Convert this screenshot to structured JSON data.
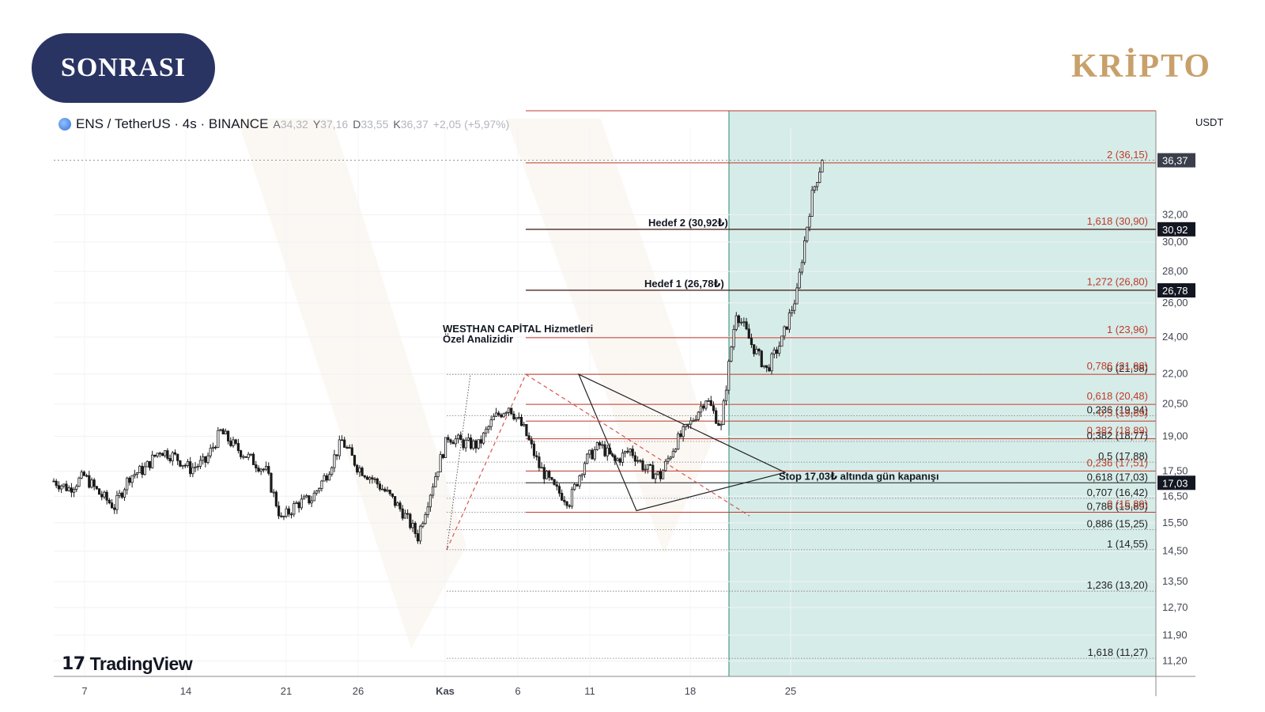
{
  "badge": {
    "label": "SONRASI"
  },
  "brand": {
    "label": "KRİPTO"
  },
  "symbol": {
    "name": "ENS / TetherUS · 4s · BINANCE",
    "open_label": "A",
    "open": "34,32",
    "high_label": "Y",
    "high": "37,16",
    "low_label": "D",
    "low": "33,55",
    "close_label": "K",
    "close": "36,37",
    "change": "+2,05 (+5,97%)"
  },
  "currency": "USDT",
  "tradingview_label": "TradingView",
  "colors": {
    "fib_red": "#c0392b",
    "fib_gray": "#555555",
    "zone": "#d6ece8",
    "zone_border": "#4a9a8a",
    "candle": "#1a1a1a",
    "badge": "#2a3463",
    "brand": "#c8a06a",
    "price_label_bg": "#131722"
  },
  "chart_data": {
    "type": "candlestick",
    "symbol": "ENS / TetherUS",
    "timeframe": "4s",
    "exchange": "BINANCE",
    "ylim": [
      10.8,
      38.5
    ],
    "y_axis_ticks": [
      "32,00",
      "30,00",
      "28,00",
      "26,00",
      "24,00",
      "22,00",
      "20,50",
      "19,00",
      "17,50",
      "16,50",
      "15,50",
      "14,50",
      "13,50",
      "12,70",
      "11,90",
      "11,20"
    ],
    "x_axis_ticks": [
      "7",
      "14",
      "21",
      "26",
      "Kas",
      "6",
      "11",
      "18",
      "25"
    ],
    "price_labels": [
      {
        "value": 36.37,
        "text": "36,37",
        "style": "current"
      },
      {
        "value": 30.92,
        "text": "30,92",
        "style": "marker"
      },
      {
        "value": 26.78,
        "text": "26,78",
        "style": "marker"
      },
      {
        "value": 17.03,
        "text": "17,03",
        "style": "marker"
      }
    ],
    "fib_extension_levels": [
      {
        "label": "2 (36,15)",
        "value": 36.15
      },
      {
        "label": "1,618 (30,90)",
        "value": 30.9
      },
      {
        "label": "1,272 (26,80)",
        "value": 26.8
      },
      {
        "label": "1 (23,96)",
        "value": 23.96
      },
      {
        "label": "0,786 (21,98)",
        "value": 21.98
      },
      {
        "label": "0,618 (20,48)",
        "value": 20.48
      },
      {
        "label": "0,5 (19,69)",
        "value": 19.69
      },
      {
        "label": "0,382 (18,89)",
        "value": 18.89
      },
      {
        "label": "0,236 (17,51)",
        "value": 17.51
      },
      {
        "label": "0 (15,89)",
        "value": 15.89
      }
    ],
    "fib_retracement_levels": [
      {
        "label": "0 (21,98)",
        "value": 21.98
      },
      {
        "label": "0,236 (19,94)",
        "value": 19.94
      },
      {
        "label": "0,382 (18,77)",
        "value": 18.77
      },
      {
        "label": "0,5 (17,88)",
        "value": 17.88
      },
      {
        "label": "0,618 (17,03)",
        "value": 17.03
      },
      {
        "label": "0,707 (16,42)",
        "value": 16.42
      },
      {
        "label": "0,786 (15,89)",
        "value": 15.89
      },
      {
        "label": "0,886 (15,25)",
        "value": 15.25
      },
      {
        "label": "1 (14,55)",
        "value": 14.55
      },
      {
        "label": "1,236 (13,20)",
        "value": 13.2
      },
      {
        "label": "1,618 (11,27)",
        "value": 11.27
      }
    ],
    "target_lines": [
      {
        "label": "Hedef 2 (30,92₺)",
        "value": 30.92
      },
      {
        "label": "Hedef 1 (26,78₺)",
        "value": 26.78
      },
      {
        "label": "Stop 17,03₺ altında gün kapanışı",
        "value": 17.03
      }
    ],
    "annotations": [
      "WESTHAN CAPİTAL Hizmetleri",
      "Özel Analizidir"
    ],
    "price_path": [
      [
        0,
        17.1
      ],
      [
        6,
        16.8
      ],
      [
        12,
        17.3
      ],
      [
        18,
        16.6
      ],
      [
        24,
        16.1
      ],
      [
        30,
        17.3
      ],
      [
        36,
        17.6
      ],
      [
        42,
        18.4
      ],
      [
        48,
        18.1
      ],
      [
        54,
        17.6
      ],
      [
        60,
        17.9
      ],
      [
        66,
        19.2
      ],
      [
        72,
        18.5
      ],
      [
        78,
        18.0
      ],
      [
        84,
        17.5
      ],
      [
        90,
        15.6
      ],
      [
        96,
        16.2
      ],
      [
        102,
        16.4
      ],
      [
        108,
        17.4
      ],
      [
        114,
        18.8
      ],
      [
        120,
        17.7
      ],
      [
        126,
        17.2
      ],
      [
        132,
        16.6
      ],
      [
        138,
        15.9
      ],
      [
        144,
        15.0
      ],
      [
        150,
        17.0
      ],
      [
        156,
        19.0
      ],
      [
        162,
        18.7
      ],
      [
        168,
        18.6
      ],
      [
        174,
        19.8
      ],
      [
        180,
        20.4
      ],
      [
        186,
        19.3
      ],
      [
        192,
        17.7
      ],
      [
        198,
        16.8
      ],
      [
        204,
        16.3
      ],
      [
        210,
        17.9
      ],
      [
        216,
        18.6
      ],
      [
        222,
        17.9
      ],
      [
        228,
        18.4
      ],
      [
        234,
        17.6
      ],
      [
        240,
        17.3
      ],
      [
        246,
        18.7
      ],
      [
        252,
        19.6
      ],
      [
        258,
        20.8
      ],
      [
        264,
        19.4
      ],
      [
        270,
        25.5
      ],
      [
        276,
        23.6
      ],
      [
        282,
        22.2
      ],
      [
        288,
        23.8
      ],
      [
        294,
        26.6
      ],
      [
        300,
        33.5
      ],
      [
        304,
        36.37
      ]
    ]
  }
}
